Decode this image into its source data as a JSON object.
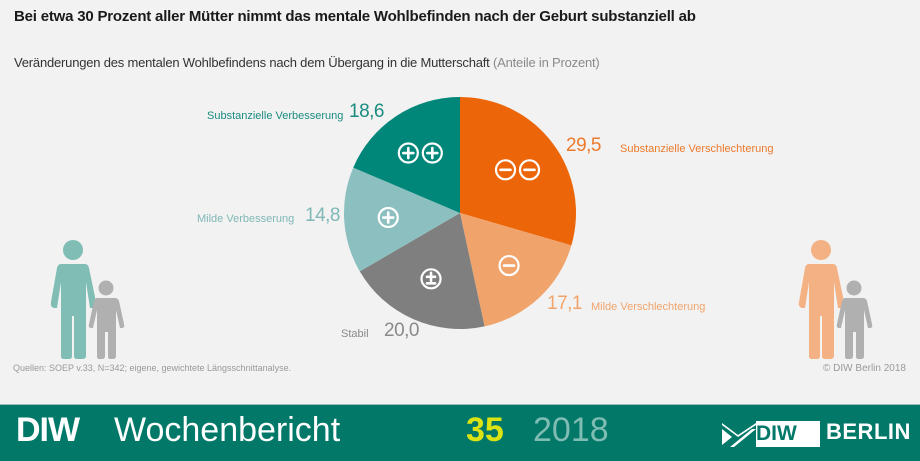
{
  "header": {
    "title": "Bei etwa 30 Prozent aller Mütter nimmt das mentale Wohlbefinden nach der Geburt substanziell ab",
    "subtitle": "Veränderungen des mentalen Wohlbefindens nach dem Übergang in die Mutterschaft",
    "unit": "(Anteile in Prozent)"
  },
  "chart_data": {
    "type": "pie",
    "title": "Veränderungen des mentalen Wohlbefindens nach dem Übergang in die Mutterschaft",
    "unit": "Anteile in Prozent",
    "start": "top, clockwise",
    "slices": [
      {
        "label": "Substanzielle Verschlechterung",
        "value": 29.5,
        "value_label": "29,5",
        "color": "#ec6609",
        "label_color": "#ec7a2c",
        "symbol": "minus-minus"
      },
      {
        "label": "Milde Verschlechterung",
        "value": 17.1,
        "value_label": "17,1",
        "color": "#f0a46c",
        "label_color": "#f0a46c",
        "symbol": "minus"
      },
      {
        "label": "Stabil",
        "value": 20.0,
        "value_label": "20,0",
        "color": "#7f7f7f",
        "label_color": "#8a8a8a",
        "symbol": "plus-minus"
      },
      {
        "label": "Milde Verbesserung",
        "value": 14.8,
        "value_label": "14,8",
        "color": "#8cbfbf",
        "label_color": "#7fb8b6",
        "symbol": "plus"
      },
      {
        "label": "Substanzielle Verbesserung",
        "value": 18.6,
        "value_label": "18,6",
        "color": "#00877a",
        "label_color": "#1a8c80",
        "symbol": "plus-plus"
      }
    ]
  },
  "figures": {
    "left": {
      "adult_color": "#7fbdb5",
      "child_color": "#b0b0b0"
    },
    "right": {
      "adult_color": "#f4b183",
      "child_color": "#b0b0b0"
    }
  },
  "source": "Quellen: SOEP v.33, N=342; eigene, gewichtete Längsschnittanalyse.",
  "copyright": "© DIW Berlin 2018",
  "footer": {
    "brand": "DIW",
    "publication": "Wochenbericht",
    "issue": "35",
    "year": "2018",
    "logo_diw": "DIW",
    "logo_berlin": "BERLIN"
  }
}
